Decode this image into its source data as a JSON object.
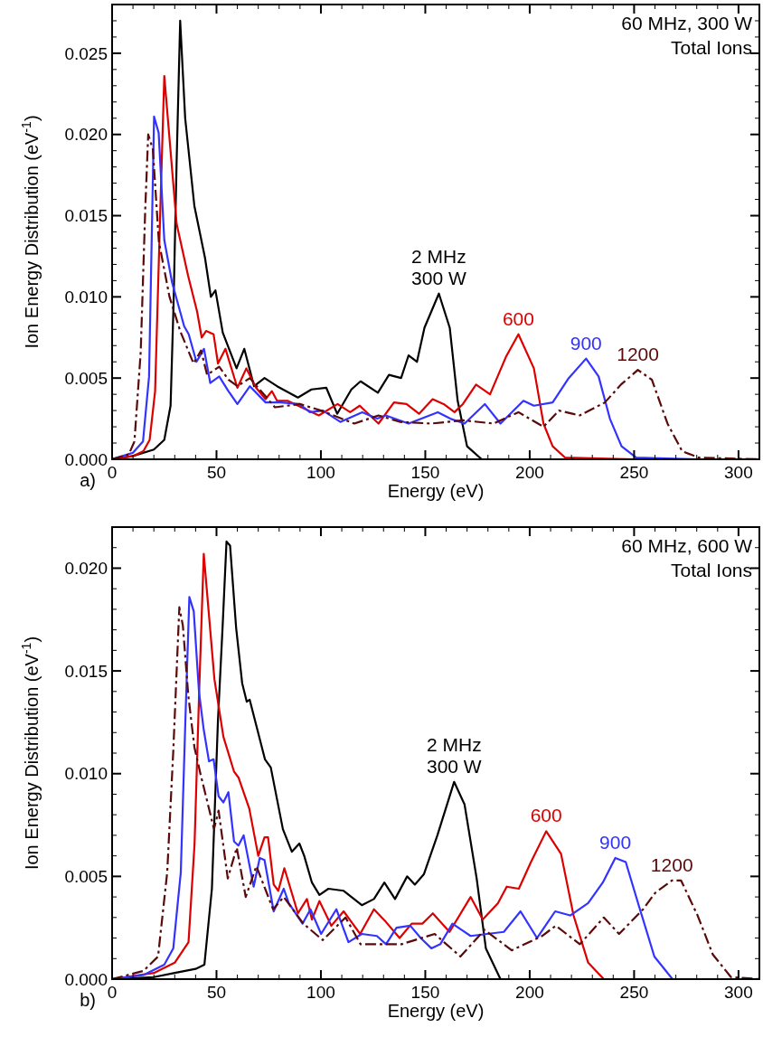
{
  "chart_data": [
    {
      "type": "line",
      "xlabel": "Energy (eV)",
      "ylabel": "Ion Energy Distribution (eV$^{-1}$)",
      "annotations": [
        "60 MHz, 300 W",
        "Total Ions",
        "a)"
      ],
      "xlim": [
        0,
        310
      ],
      "ylim": [
        0,
        0.028
      ],
      "xticks": [
        0,
        {
          "value": 10,
          "label": null
        },
        {
          "value": 20,
          "label": null
        },
        {
          "value": 30,
          "label": null
        },
        {
          "value": 40,
          "label": null
        },
        50,
        {
          "value": 60,
          "label": null
        },
        {
          "value": 70,
          "label": null
        },
        {
          "value": 80,
          "label": null
        },
        {
          "value": 90,
          "label": null
        },
        100,
        {
          "value": 110,
          "label": null
        },
        {
          "value": 120,
          "label": null
        },
        {
          "value": 130,
          "label": null
        },
        {
          "value": 140,
          "label": null
        },
        150,
        {
          "value": 160,
          "label": null
        },
        {
          "value": 170,
          "label": null
        },
        {
          "value": 180,
          "label": null
        },
        {
          "value": 190,
          "label": null
        },
        200,
        {
          "value": 210,
          "label": null
        },
        {
          "value": 220,
          "label": null
        },
        {
          "value": 230,
          "label": null
        },
        {
          "value": 240,
          "label": null
        },
        250,
        {
          "value": 260,
          "label": null
        },
        {
          "value": 270,
          "label": null
        },
        {
          "value": 280,
          "label": null
        },
        {
          "value": 290,
          "label": null
        },
        300
      ],
      "yticks": [
        {
          "value": 0,
          "label": "0.000"
        },
        {
          "value": 0.001,
          "label": null
        },
        {
          "value": 0.002,
          "label": null
        },
        {
          "value": 0.003,
          "label": null
        },
        {
          "value": 0.004,
          "label": null
        },
        {
          "value": 0.005,
          "label": "0.005"
        },
        {
          "value": 0.006,
          "label": null
        },
        {
          "value": 0.007,
          "label": null
        },
        {
          "value": 0.008,
          "label": null
        },
        {
          "value": 0.009,
          "label": null
        },
        {
          "value": 0.01,
          "label": "0.010"
        },
        {
          "value": 0.011,
          "label": null
        },
        {
          "value": 0.012,
          "label": null
        },
        {
          "value": 0.013,
          "label": null
        },
        {
          "value": 0.014,
          "label": null
        },
        {
          "value": 0.015,
          "label": "0.015"
        },
        {
          "value": 0.016,
          "label": null
        },
        {
          "value": 0.017,
          "label": null
        },
        {
          "value": 0.018,
          "label": null
        },
        {
          "value": 0.019,
          "label": null
        },
        {
          "value": 0.02,
          "label": "0.020"
        },
        {
          "value": 0.021,
          "label": null
        },
        {
          "value": 0.022,
          "label": null
        },
        {
          "value": 0.023,
          "label": null
        },
        {
          "value": 0.024,
          "label": null
        },
        {
          "value": 0.025,
          "label": "0.025"
        },
        {
          "value": 0.026,
          "label": null
        },
        {
          "value": 0.027,
          "label": null
        }
      ],
      "series": [
        {
          "name": "2 MHz\n300 W",
          "color": "#000000",
          "line_style": "solid",
          "x": [
            0,
            10,
            20,
            25,
            28,
            29.4,
            30.9,
            32.6,
            35,
            39.4,
            44.5,
            47.3,
            49.5,
            53,
            59.6,
            63.3,
            68,
            73,
            79,
            89,
            95.5,
            102.6,
            107.8,
            114.6,
            119,
            127.3,
            132.6,
            138.4,
            142,
            146,
            149.6,
            156.5,
            161.7,
            165.5,
            170,
            177,
            200,
            250,
            310
          ],
          "values": [
            0,
            0.0002,
            0.0006,
            0.0012,
            0.0033,
            0.0094,
            0.0183,
            0.027,
            0.021,
            0.0156,
            0.0124,
            0.01,
            0.0104,
            0.0078,
            0.0056,
            0.0068,
            0.0045,
            0.005,
            0.0045,
            0.0038,
            0.0043,
            0.0044,
            0.0028,
            0.0043,
            0.0048,
            0.0041,
            0.0052,
            0.005,
            0.0064,
            0.006,
            0.0081,
            0.0102,
            0.0081,
            0.0036,
            0.0008,
            0,
            0,
            0,
            0
          ]
        },
        {
          "name": "600",
          "color": "#dd0000",
          "line_style": "solid",
          "x": [
            0,
            10,
            15,
            18,
            20.6,
            23,
            25,
            30.9,
            36.4,
            40.7,
            42.9,
            45,
            48.6,
            50.7,
            54.3,
            60,
            64.3,
            69,
            73.5,
            76.5,
            79,
            84,
            99,
            108,
            114,
            118.6,
            127.6,
            135,
            141,
            147,
            153.5,
            158.8,
            164,
            168,
            174.3,
            181,
            188.6,
            194.6,
            202,
            206.6,
            211,
            217,
            250,
            310
          ],
          "values": [
            0,
            0.0002,
            0.0005,
            0.0012,
            0.0042,
            0.015,
            0.0236,
            0.0145,
            0.0113,
            0.0091,
            0.0075,
            0.0079,
            0.0077,
            0.0059,
            0.0068,
            0.0044,
            0.0056,
            0.0044,
            0.0037,
            0.0042,
            0.0036,
            0.0036,
            0.0027,
            0.0034,
            0.0029,
            0.0033,
            0.0022,
            0.0035,
            0.0034,
            0.0028,
            0.0037,
            0.0034,
            0.0029,
            0.0034,
            0.0046,
            0.004,
            0.0063,
            0.0077,
            0.0056,
            0.0022,
            0.0008,
            0.0001,
            0,
            0
          ]
        },
        {
          "name": "900",
          "color": "#3333ff",
          "line_style": "solid",
          "x": [
            0,
            10,
            14.8,
            17.7,
            20.1,
            22.3,
            25,
            28.7,
            34.5,
            36.7,
            40.4,
            44,
            47,
            51.3,
            55.7,
            60,
            66,
            73.5,
            80.7,
            89.7,
            94.7,
            101,
            109.3,
            119.8,
            127,
            131,
            142,
            156,
            162,
            168.8,
            178.5,
            186,
            197,
            202,
            211,
            218.7,
            227,
            233,
            238.4,
            244,
            251,
            280,
            310
          ],
          "values": [
            0,
            0.0004,
            0.0011,
            0.0051,
            0.0211,
            0.0201,
            0.0135,
            0.0109,
            0.0082,
            0.0077,
            0.006,
            0.0068,
            0.0047,
            0.0051,
            0.0042,
            0.0034,
            0.0045,
            0.0035,
            0.0035,
            0.0034,
            0.0029,
            0.003,
            0.0023,
            0.0029,
            0.0025,
            0.0027,
            0.0022,
            0.0029,
            0.0025,
            0.0022,
            0.0034,
            0.0022,
            0.0036,
            0.0033,
            0.0035,
            0.005,
            0.0062,
            0.0051,
            0.0025,
            0.0008,
            0.0001,
            0,
            0
          ]
        },
        {
          "name": "1200",
          "color": "#5a0a0a",
          "line_style": "dashed",
          "x": [
            0,
            8,
            10.7,
            13.7,
            15.9,
            17.3,
            19.5,
            22.4,
            27.5,
            32.6,
            39,
            42.6,
            45.5,
            51.3,
            55.7,
            60,
            66,
            78,
            90,
            100,
            116,
            127.6,
            138,
            152.8,
            168,
            182.6,
            194.6,
            206.6,
            214,
            224,
            236,
            243.7,
            251.8,
            258.5,
            266,
            273,
            281,
            310
          ],
          "values": [
            0,
            0.0003,
            0.0011,
            0.0066,
            0.0155,
            0.02,
            0.0191,
            0.0134,
            0.01,
            0.0079,
            0.0059,
            0.0067,
            0.0052,
            0.0057,
            0.0049,
            0.0045,
            0.005,
            0.0032,
            0.0034,
            0.003,
            0.0022,
            0.0027,
            0.0023,
            0.0022,
            0.0024,
            0.0022,
            0.0029,
            0.002,
            0.003,
            0.0027,
            0.0035,
            0.0046,
            0.0055,
            0.0049,
            0.0022,
            0.0005,
            0.0001,
            0
          ]
        }
      ]
    },
    {
      "type": "line",
      "xlabel": "Energy (eV)",
      "ylabel": "Ion Energy Distribution (eV$^{-1}$)",
      "annotations": [
        "60 MHz, 600 W",
        "Total Ions",
        "b)"
      ],
      "xlim": [
        0,
        310
      ],
      "ylim": [
        0,
        0.022
      ],
      "xticks": [
        0,
        {
          "value": 10,
          "label": null
        },
        {
          "value": 20,
          "label": null
        },
        {
          "value": 30,
          "label": null
        },
        {
          "value": 40,
          "label": null
        },
        50,
        {
          "value": 60,
          "label": null
        },
        {
          "value": 70,
          "label": null
        },
        {
          "value": 80,
          "label": null
        },
        {
          "value": 90,
          "label": null
        },
        100,
        {
          "value": 110,
          "label": null
        },
        {
          "value": 120,
          "label": null
        },
        {
          "value": 130,
          "label": null
        },
        {
          "value": 140,
          "label": null
        },
        150,
        {
          "value": 160,
          "label": null
        },
        {
          "value": 170,
          "label": null
        },
        {
          "value": 180,
          "label": null
        },
        {
          "value": 190,
          "label": null
        },
        200,
        {
          "value": 210,
          "label": null
        },
        {
          "value": 220,
          "label": null
        },
        {
          "value": 230,
          "label": null
        },
        {
          "value": 240,
          "label": null
        },
        250,
        {
          "value": 260,
          "label": null
        },
        {
          "value": 270,
          "label": null
        },
        {
          "value": 280,
          "label": null
        },
        {
          "value": 290,
          "label": null
        },
        300
      ],
      "yticks": [
        {
          "value": 0,
          "label": "0.000"
        },
        {
          "value": 0.001,
          "label": null
        },
        {
          "value": 0.002,
          "label": null
        },
        {
          "value": 0.003,
          "label": null
        },
        {
          "value": 0.004,
          "label": null
        },
        {
          "value": 0.005,
          "label": "0.005"
        },
        {
          "value": 0.006,
          "label": null
        },
        {
          "value": 0.007,
          "label": null
        },
        {
          "value": 0.008,
          "label": null
        },
        {
          "value": 0.009,
          "label": null
        },
        {
          "value": 0.01,
          "label": "0.010"
        },
        {
          "value": 0.011,
          "label": null
        },
        {
          "value": 0.012,
          "label": null
        },
        {
          "value": 0.013,
          "label": null
        },
        {
          "value": 0.014,
          "label": null
        },
        {
          "value": 0.015,
          "label": "0.015"
        },
        {
          "value": 0.016,
          "label": null
        },
        {
          "value": 0.017,
          "label": null
        },
        {
          "value": 0.018,
          "label": null
        },
        {
          "value": 0.019,
          "label": null
        },
        {
          "value": 0.02,
          "label": "0.020"
        },
        {
          "value": 0.021,
          "label": null
        }
      ],
      "series": [
        {
          "name": "2 MHz\n300 W",
          "color": "#000000",
          "line_style": "solid",
          "x": [
            0,
            20,
            30,
            40,
            44.2,
            47.8,
            50.7,
            52.9,
            54.8,
            56.5,
            59.4,
            62.3,
            64.5,
            65.9,
            73.2,
            76,
            81.8,
            86.1,
            89.7,
            92,
            95.7,
            99.3,
            103.6,
            110.9,
            119.6,
            125.4,
            130.4,
            135.5,
            141.3,
            145,
            149.3,
            155.8,
            163.8,
            168.8,
            174.6,
            179,
            186,
            250,
            310
          ],
          "values": [
            0,
            0.0001,
            0.0003,
            0.0005,
            0.0007,
            0.0044,
            0.0126,
            0.0171,
            0.0213,
            0.0211,
            0.0171,
            0.0144,
            0.0135,
            0.0136,
            0.0107,
            0.0103,
            0.0073,
            0.0062,
            0.0066,
            0.006,
            0.0047,
            0.0041,
            0.0044,
            0.0043,
            0.0036,
            0.0039,
            0.0047,
            0.0039,
            0.005,
            0.0046,
            0.0051,
            0.007,
            0.0096,
            0.0085,
            0.0049,
            0.0015,
            0,
            0,
            0
          ]
        },
        {
          "name": "600",
          "color": "#dd0000",
          "line_style": "solid",
          "x": [
            0,
            20,
            30,
            36.6,
            39.5,
            41.7,
            43.9,
            49,
            53.3,
            58.4,
            60.6,
            65.7,
            70,
            73,
            74.7,
            77.4,
            79.6,
            82.5,
            89,
            93.3,
            95.7,
            99.3,
            105,
            110.9,
            118.8,
            125.4,
            131,
            137.7,
            143.5,
            148.6,
            153.6,
            161.6,
            171.7,
            177.5,
            184.8,
            189,
            194.8,
            200.6,
            207.9,
            215,
            221,
            228,
            235.5,
            310
          ],
          "values": [
            0,
            0.0003,
            0.0008,
            0.0018,
            0.0066,
            0.014,
            0.0207,
            0.0146,
            0.0118,
            0.0101,
            0.0098,
            0.0083,
            0.006,
            0.0069,
            0.0069,
            0.0046,
            0.0043,
            0.0054,
            0.0032,
            0.0039,
            0.0029,
            0.0038,
            0.0026,
            0.0033,
            0.0022,
            0.0034,
            0.0028,
            0.002,
            0.0027,
            0.0027,
            0.0032,
            0.0023,
            0.004,
            0.0029,
            0.0037,
            0.0045,
            0.0044,
            0.0057,
            0.0072,
            0.0061,
            0.0031,
            0.0008,
            0,
            0
          ]
        },
        {
          "name": "900",
          "color": "#3333ff",
          "line_style": "solid",
          "x": [
            0,
            15,
            25,
            29.3,
            32.9,
            35.1,
            37,
            39.1,
            41.6,
            43.8,
            46.4,
            48.6,
            51,
            53.3,
            55.7,
            58.4,
            60.5,
            63,
            67.8,
            70.7,
            73,
            77.4,
            82.2,
            84.6,
            91.2,
            95,
            100.1,
            107.4,
            113.2,
            119.6,
            126.8,
            131.2,
            136.2,
            142.8,
            147.8,
            152.9,
            157.2,
            163,
            171.7,
            187.6,
            195.6,
            203.5,
            212.2,
            219.4,
            228,
            235,
            241,
            246,
            252.5,
            259.7,
            268.4,
            310
          ],
          "values": [
            0,
            0.0002,
            0.0007,
            0.0015,
            0.0052,
            0.0126,
            0.0186,
            0.0179,
            0.014,
            0.0122,
            0.0106,
            0.0107,
            0.0089,
            0.0086,
            0.0091,
            0.0067,
            0.0065,
            0.007,
            0.0045,
            0.0059,
            0.0058,
            0.0033,
            0.0044,
            0.0037,
            0.0027,
            0.0034,
            0.0022,
            0.0034,
            0.0018,
            0.0022,
            0.0021,
            0.0017,
            0.0025,
            0.0026,
            0.002,
            0.0015,
            0.0017,
            0.0027,
            0.0021,
            0.0023,
            0.0033,
            0.002,
            0.0033,
            0.0031,
            0.0037,
            0.0047,
            0.0059,
            0.0057,
            0.0035,
            0.0011,
            0,
            0
          ]
        },
        {
          "name": "1200",
          "color": "#5a0a0a",
          "line_style": "dashed",
          "x": [
            0,
            15,
            22,
            26.4,
            29.3,
            32.2,
            33.9,
            36.5,
            39.4,
            42.3,
            48.8,
            51,
            55.4,
            59.7,
            64,
            69.1,
            77.1,
            82.2,
            91.6,
            100.9,
            111.8,
            119,
            138.6,
            154.5,
            166.8,
            178.4,
            191.4,
            205.9,
            212.5,
            224,
            235.5,
            242.8,
            254.3,
            260.1,
            268.1,
            272.5,
            280.4,
            287.7,
            296.4,
            310
          ],
          "values": [
            0,
            0.0004,
            0.0011,
            0.0052,
            0.0111,
            0.0181,
            0.0172,
            0.0138,
            0.0113,
            0.01,
            0.0073,
            0.0082,
            0.0049,
            0.0064,
            0.004,
            0.0055,
            0.0034,
            0.004,
            0.0027,
            0.0019,
            0.003,
            0.0017,
            0.0017,
            0.0022,
            0.0011,
            0.0024,
            0.0014,
            0.0021,
            0.0026,
            0.0017,
            0.003,
            0.0022,
            0.0034,
            0.0042,
            0.0048,
            0.0048,
            0.0031,
            0.0012,
            0.0001,
            0
          ]
        }
      ]
    }
  ]
}
